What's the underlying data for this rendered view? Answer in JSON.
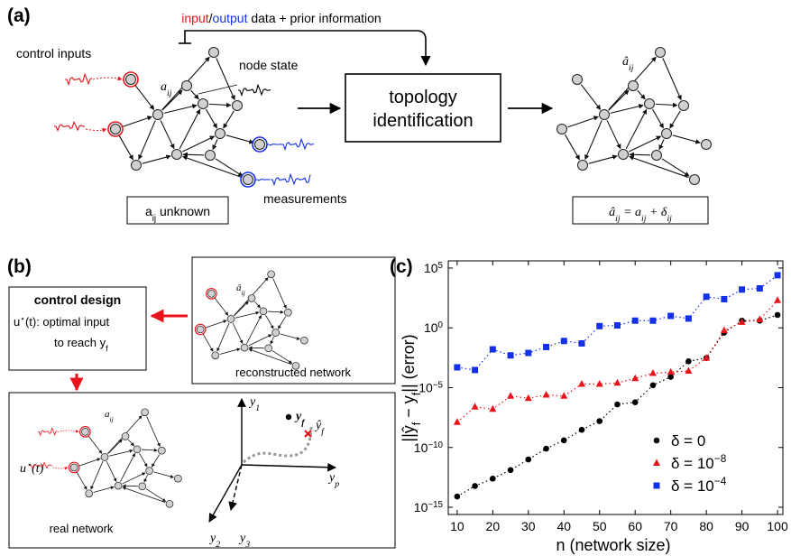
{
  "panel_a": {
    "label": "(a)",
    "feedback_text": [
      "input",
      "/",
      "output",
      " data + prior information"
    ],
    "control_inputs": "control inputs",
    "node_state": "node state",
    "edge_label": "a_{ij}",
    "box": [
      "topology",
      "identification"
    ],
    "measurements": "measurements",
    "unknown_box": "a_{ij} unknown",
    "estimate_label": "â_{ij}",
    "estimate_box": "â_{ij} = a_{ij} + δ_{ij}"
  },
  "panel_b": {
    "label": "(b)",
    "control_title": "control design",
    "control_line1": "u^{⋆}(t): optimal input",
    "control_line2": "to reach y_{f}",
    "reconstructed_label": "â_{ij}",
    "reconstructed": "reconstructed network",
    "real_label": "a_{ij}",
    "input_label": "u^{⋆}(t)",
    "real": "real network",
    "axis_y1": "y_{1}",
    "axis_yp": "y_{p}",
    "axis_y2": "y_{2}",
    "axis_y3": "y_{3}",
    "target": "y_{f}",
    "reached": "ŷ_{f}"
  },
  "chart_data": {
    "type": "line",
    "panel_label": "(c)",
    "xlabel": "n (network size)",
    "ylabel": "||ŷ_{f} − y_{f}|| (error)",
    "x": [
      10,
      15,
      20,
      25,
      30,
      35,
      40,
      45,
      50,
      55,
      60,
      65,
      70,
      75,
      80,
      85,
      90,
      95,
      100
    ],
    "xlim": [
      7.5,
      101.5
    ],
    "xticks": [
      10,
      20,
      30,
      40,
      50,
      60,
      70,
      80,
      90,
      100
    ],
    "ylim": [
      2.5e-16,
      400000
    ],
    "log_y": true,
    "yticks": [
      {
        "value": 1e-15,
        "label": "10^{−15}"
      },
      {
        "value": 1e-10,
        "label": "10^{−10}"
      },
      {
        "value": 1e-05,
        "label": "10^{−5}"
      },
      {
        "value": 1,
        "label": "10^{0}"
      },
      {
        "value": 100000,
        "label": "10^{5}"
      }
    ],
    "legend": "lower right",
    "series": [
      {
        "name": "δ = 0",
        "color": "#000000",
        "marker": "circle",
        "values": [
          8e-15,
          6e-14,
          2.5e-13,
          1.3e-12,
          1e-11,
          8e-11,
          4e-10,
          3e-09,
          1.6e-08,
          4e-07,
          6e-07,
          1.6e-05,
          8e-05,
          0.0016,
          0.003,
          0.4,
          4,
          4,
          12
        ]
      },
      {
        "name": "δ = 10^{−8}",
        "color": "#e8141c",
        "marker": "triangle",
        "values": [
          1.3e-08,
          2.5e-07,
          1.6e-07,
          2e-06,
          1.3e-06,
          2.5e-06,
          2e-06,
          2e-05,
          2e-05,
          2.5e-05,
          6e-05,
          0.00016,
          0.0002,
          0.00025,
          0.003,
          0.6,
          3,
          5,
          200
        ]
      },
      {
        "name": "δ = 10^{−4}",
        "color": "#1430e6",
        "marker": "square",
        "values": [
          0.0005,
          0.0003,
          0.016,
          0.005,
          0.008,
          0.025,
          0.08,
          0.05,
          1.4,
          1.6,
          4,
          4,
          10,
          6,
          400,
          250,
          1600,
          2000,
          25000
        ]
      }
    ]
  }
}
